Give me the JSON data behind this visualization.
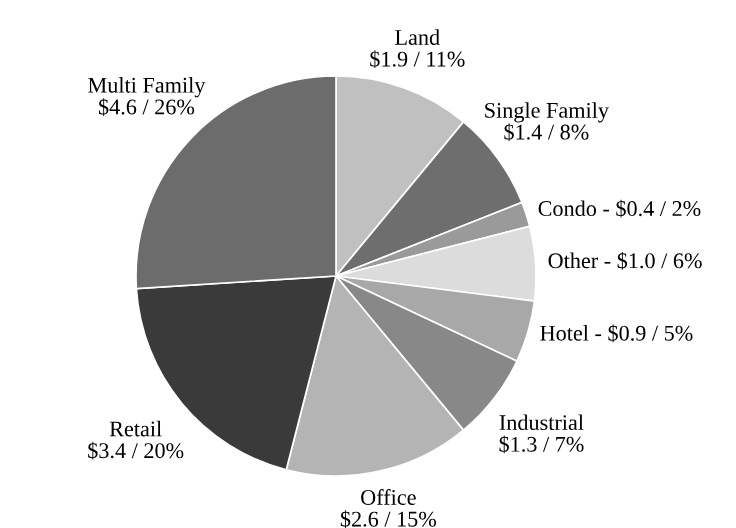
{
  "chart_data": {
    "type": "pie",
    "categories": [
      "Land",
      "Single Family",
      "Condo",
      "Other",
      "Hotel",
      "Industrial",
      "Office",
      "Retail",
      "Multi Family"
    ],
    "values": [
      11,
      8,
      2,
      6,
      5,
      7,
      15,
      20,
      26
    ],
    "value_labels": [
      "$1.9 / 11%",
      "$1.4 / 8%",
      "$0.4 / 2%",
      "$1.0 / 6%",
      "$0.9 / 5%",
      "$1.3 / 7%",
      "$2.6 / 15%",
      "$3.4 / 20%",
      "$4.6 / 26%"
    ],
    "colors": [
      "#c0c0c0",
      "#6e6e6e",
      "#9a9a9a",
      "#dcdcdc",
      "#a8a8a8",
      "#888888",
      "#b4b4b4",
      "#3a3a3a",
      "#6c6c6c"
    ]
  }
}
